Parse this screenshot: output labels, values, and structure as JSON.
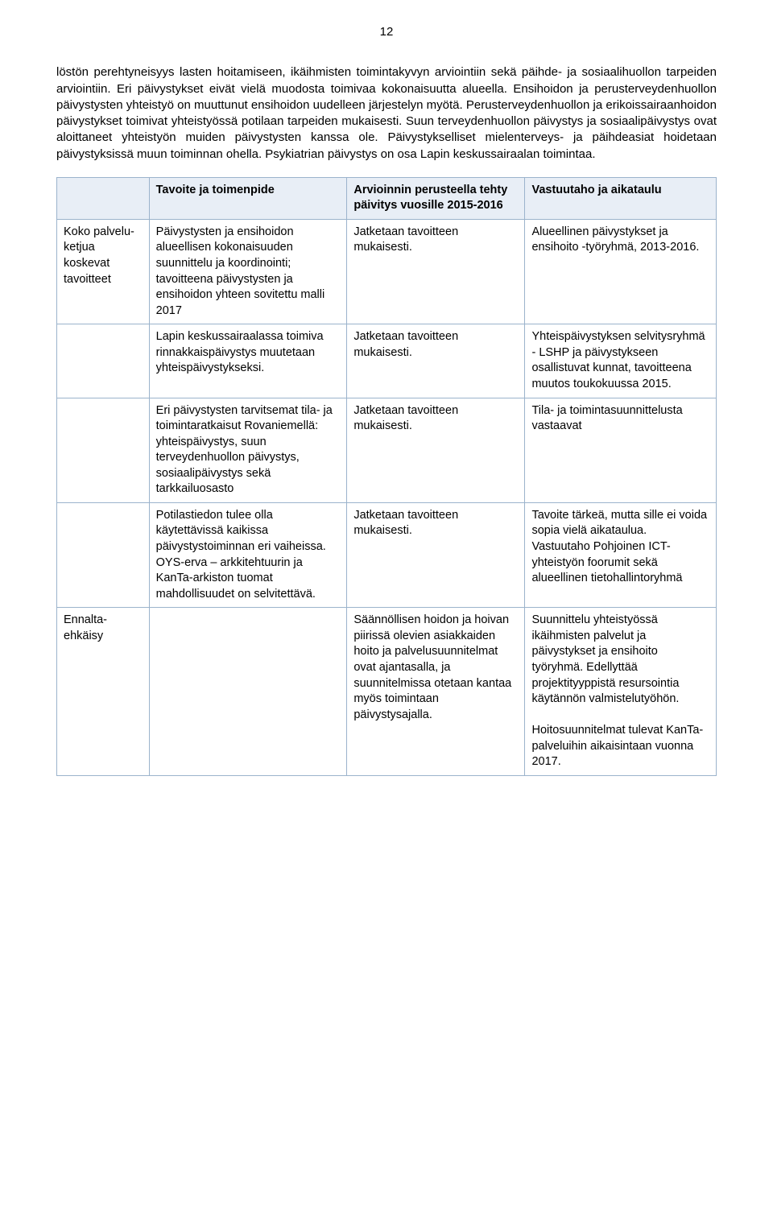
{
  "page_number": "12",
  "paragraph": "löstön perehtyneisyys lasten hoitamiseen, ikäihmisten toimintakyvyn arviointiin sekä päihde- ja sosiaalihuollon tarpeiden arviointiin. Eri päivystykset eivät vielä muodosta toimivaa kokonaisuutta alueella. Ensihoidon ja perusterveydenhuollon päivystysten yhteistyö on muuttunut ensihoidon uudelleen järjestelyn myötä. Perusterveydenhuollon ja erikoissairaanhoidon päivystykset toimivat yhteistyössä potilaan tarpeiden mukaisesti. Suun terveydenhuollon päivystys ja sosiaalipäivystys ovat aloittaneet yhteistyön muiden päivystysten kanssa ole. Päivystykselliset mielenterveys- ja päihdeasiat hoidetaan päivystyksissä muun toiminnan ohella. Psykiatrian päivystys on osa Lapin keskussairaalan toimintaa.",
  "table": {
    "header": {
      "c2": "Tavoite ja toimenpide",
      "c3": "Arvioinnin perusteella tehty päivitys vuosille 2015-2016",
      "c4": "Vastuutaho ja aikataulu"
    },
    "rows": [
      {
        "label": "Koko palvelu-ketjua koskevat tavoitteet",
        "c2": "Päivystysten ja ensihoidon alueellisen kokonaisuuden suunnittelu ja koordinointi; tavoitteena päivystysten ja ensihoidon yhteen sovitettu malli 2017",
        "c3": "Jatketaan tavoitteen mukaisesti.",
        "c4": "Alueellinen päivystykset ja ensihoito -työryhmä, 2013-2016."
      },
      {
        "label": "",
        "c2": "Lapin keskussairaalassa toimiva rinnakkaispäivystys muutetaan yhteispäivystykseksi.",
        "c3": "Jatketaan tavoitteen mukaisesti.",
        "c4": "Yhteispäivystyksen selvitysryhmä - LSHP ja päivystykseen osallistuvat kunnat, tavoitteena muutos toukokuussa 2015."
      },
      {
        "label": "",
        "c2": "Eri päivystysten tarvitsemat tila- ja toimintaratkaisut Rovaniemellä: yhteispäivystys, suun terveydenhuollon päivystys, sosiaalipäivystys sekä tarkkailuosasto",
        "c3": "Jatketaan tavoitteen mukaisesti.",
        "c4": "Tila- ja toimintasuunnittelusta vastaavat"
      },
      {
        "label": "",
        "c2": "Potilastiedon tulee olla käytettävissä kaikissa päivystystoiminnan eri vaiheissa. OYS-erva – arkkitehtuurin ja KanTa-arkiston tuomat mahdollisuudet on selvitettävä.",
        "c3": "Jatketaan tavoitteen mukaisesti.",
        "c4": "Tavoite tärkeä, mutta sille ei voida sopia vielä aikataulua.\nVastuutaho Pohjoinen ICT-yhteistyön foorumit sekä alueellinen tietohallintoryhmä"
      },
      {
        "label": "Ennalta-ehkäisy",
        "c2": "",
        "c3": "Säännöllisen hoidon ja hoivan piirissä olevien asiakkaiden hoito ja palvelusuunnitelmat ovat ajantasalla, ja suunnitelmissa otetaan kantaa myös toimintaan päivystysajalla.",
        "c4": "Suunnittelu yhteistyössä ikäihmisten palvelut ja päivystykset ja ensihoito työryhmä. Edellyttää projektityyppistä resursointia käytännön valmistelutyöhön.\n\nHoitosuunnitelmat tulevat KanTa-palveluihin aikaisintaan vuonna 2017."
      }
    ]
  },
  "colors": {
    "header_bg": "#e8eef6",
    "border": "#9bb3cc",
    "text": "#000000",
    "background": "#ffffff"
  }
}
